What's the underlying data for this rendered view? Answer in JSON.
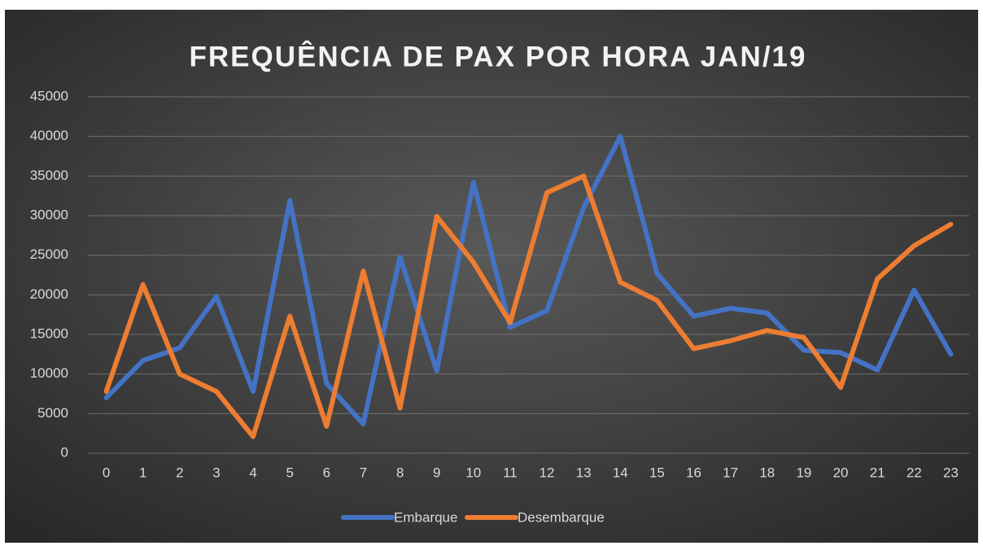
{
  "chart_data": {
    "type": "line",
    "title": "FREQUÊNCIA DE PAX POR HORA JAN/19",
    "categories": [
      "0",
      "1",
      "2",
      "3",
      "4",
      "5",
      "6",
      "7",
      "8",
      "9",
      "10",
      "11",
      "12",
      "13",
      "14",
      "15",
      "16",
      "17",
      "18",
      "19",
      "20",
      "21",
      "22",
      "23"
    ],
    "series": [
      {
        "name": "Embarque",
        "color": "#4472c4",
        "values": [
          7000,
          11700,
          13300,
          19800,
          7800,
          31900,
          8800,
          3700,
          24800,
          10400,
          34200,
          15900,
          18000,
          31000,
          40000,
          22700,
          17300,
          18300,
          17700,
          13000,
          12700,
          10500,
          20600,
          12500
        ]
      },
      {
        "name": "Desembarque",
        "color": "#ed7d31",
        "values": [
          7800,
          21300,
          10000,
          7800,
          2100,
          17300,
          3400,
          23000,
          5700,
          29900,
          24100,
          16500,
          32900,
          35000,
          21600,
          19300,
          13200,
          14200,
          15500,
          14600,
          8300,
          22000,
          26200,
          28900
        ]
      }
    ],
    "ylim": [
      0,
      45000
    ],
    "yticks": [
      0,
      5000,
      10000,
      15000,
      20000,
      25000,
      30000,
      35000,
      40000,
      45000
    ],
    "grid": true,
    "legend": "bottom"
  }
}
